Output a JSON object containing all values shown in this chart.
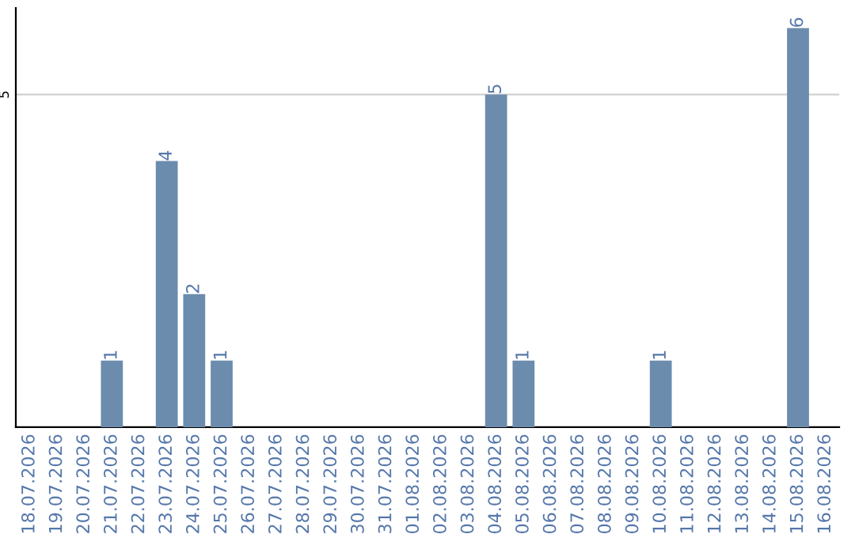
{
  "chart_data": {
    "type": "bar",
    "categories": [
      "18.07.2026",
      "19.07.2026",
      "20.07.2026",
      "21.07.2026",
      "22.07.2026",
      "23.07.2026",
      "24.07.2026",
      "25.07.2026",
      "26.07.2026",
      "27.07.2026",
      "28.07.2026",
      "29.07.2026",
      "30.07.2026",
      "31.07.2026",
      "01.08.2026",
      "02.08.2026",
      "03.08.2026",
      "04.08.2026",
      "05.08.2026",
      "06.08.2026",
      "07.08.2026",
      "08.08.2026",
      "09.08.2026",
      "10.08.2026",
      "11.08.2026",
      "12.08.2026",
      "13.08.2026",
      "14.08.2026",
      "15.08.2026",
      "16.08.2026"
    ],
    "values": [
      0,
      0,
      0,
      1,
      0,
      4,
      2,
      1,
      0,
      0,
      0,
      0,
      0,
      0,
      0,
      0,
      0,
      5,
      1,
      0,
      0,
      0,
      0,
      1,
      0,
      0,
      0,
      0,
      6,
      0
    ],
    "value_labels": [
      null,
      null,
      null,
      "1",
      null,
      "4",
      "2",
      "1",
      null,
      null,
      null,
      null,
      null,
      null,
      null,
      null,
      null,
      "5",
      "1",
      null,
      null,
      null,
      null,
      "1",
      null,
      null,
      null,
      null,
      "6",
      null
    ],
    "color": "#6b8cad",
    "ylim": [
      0,
      6.3
    ],
    "yticks": [
      5
    ],
    "grid": "y"
  }
}
